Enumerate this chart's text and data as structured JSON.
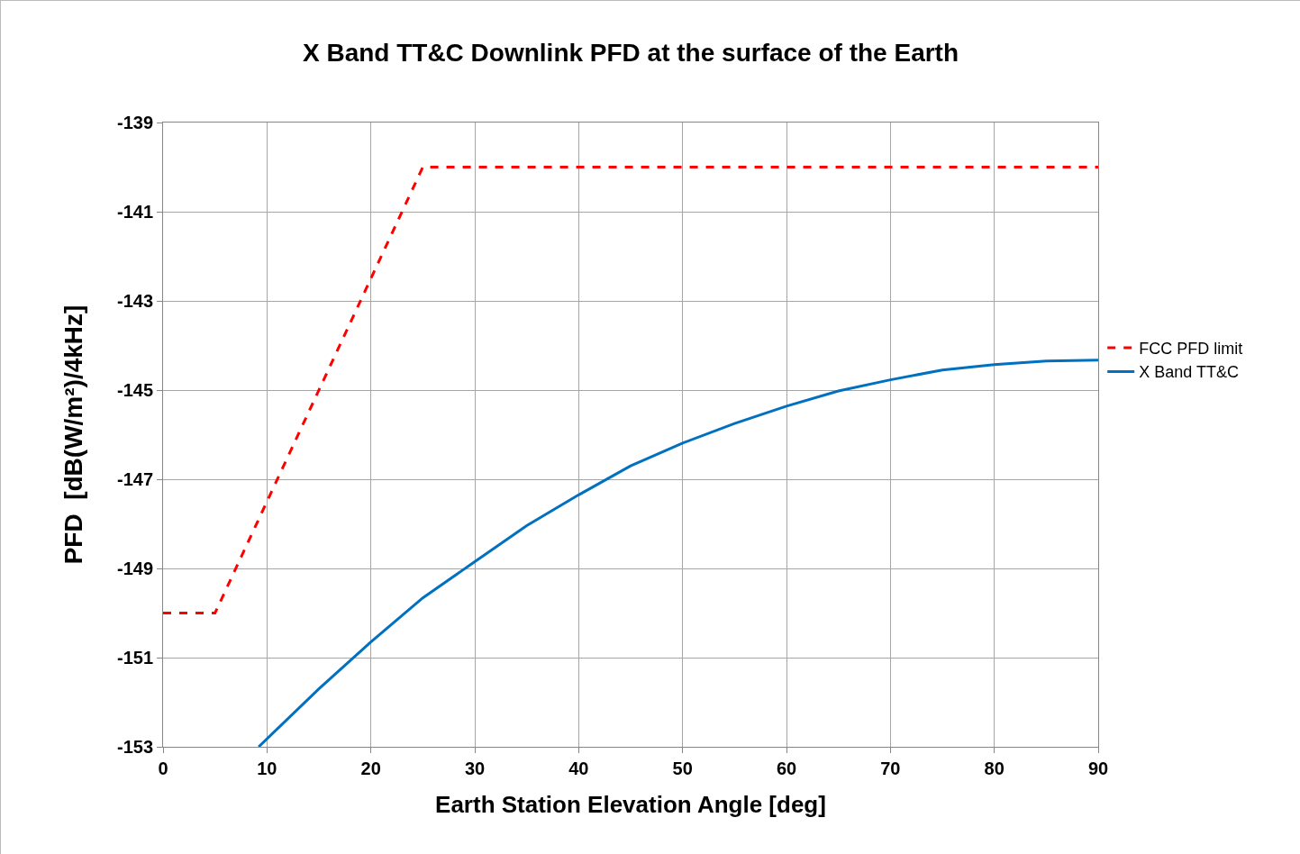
{
  "chart_data": {
    "type": "line",
    "title": "X Band TT&C Downlink PFD at the surface of the Earth",
    "xlabel": "Earth Station Elevation Angle [deg]",
    "ylabel": "PFD  [dB(W/m²)/4kHz]",
    "xlim": [
      0,
      90
    ],
    "xticks": [
      0,
      10,
      20,
      30,
      40,
      50,
      60,
      70,
      80,
      90
    ],
    "ylim": [
      -153,
      -139
    ],
    "yticks": [
      -153,
      -151,
      -149,
      -147,
      -145,
      -143,
      -141,
      -139
    ],
    "grid": true,
    "legend": "right",
    "marker": "none",
    "series": [
      {
        "name": "FCC PFD limit",
        "color": "#ff0000",
        "line_style": "dashed",
        "x": [
          0,
          5,
          25,
          90
        ],
        "values": [
          -150,
          -150,
          -140,
          -140
        ]
      },
      {
        "name": "X Band TT&C",
        "color": "#0070c0",
        "line_style": "solid",
        "x": [
          9.2,
          15,
          20,
          25,
          30,
          35,
          40,
          45,
          50,
          55,
          60,
          65,
          70,
          75,
          80,
          85,
          90
        ],
        "values": [
          -153,
          -151.7,
          -150.65,
          -149.66,
          -148.85,
          -148.04,
          -147.35,
          -146.7,
          -146.19,
          -145.75,
          -145.36,
          -145.02,
          -144.77,
          -144.55,
          -144.43,
          -144.35,
          -144.33
        ]
      }
    ]
  }
}
